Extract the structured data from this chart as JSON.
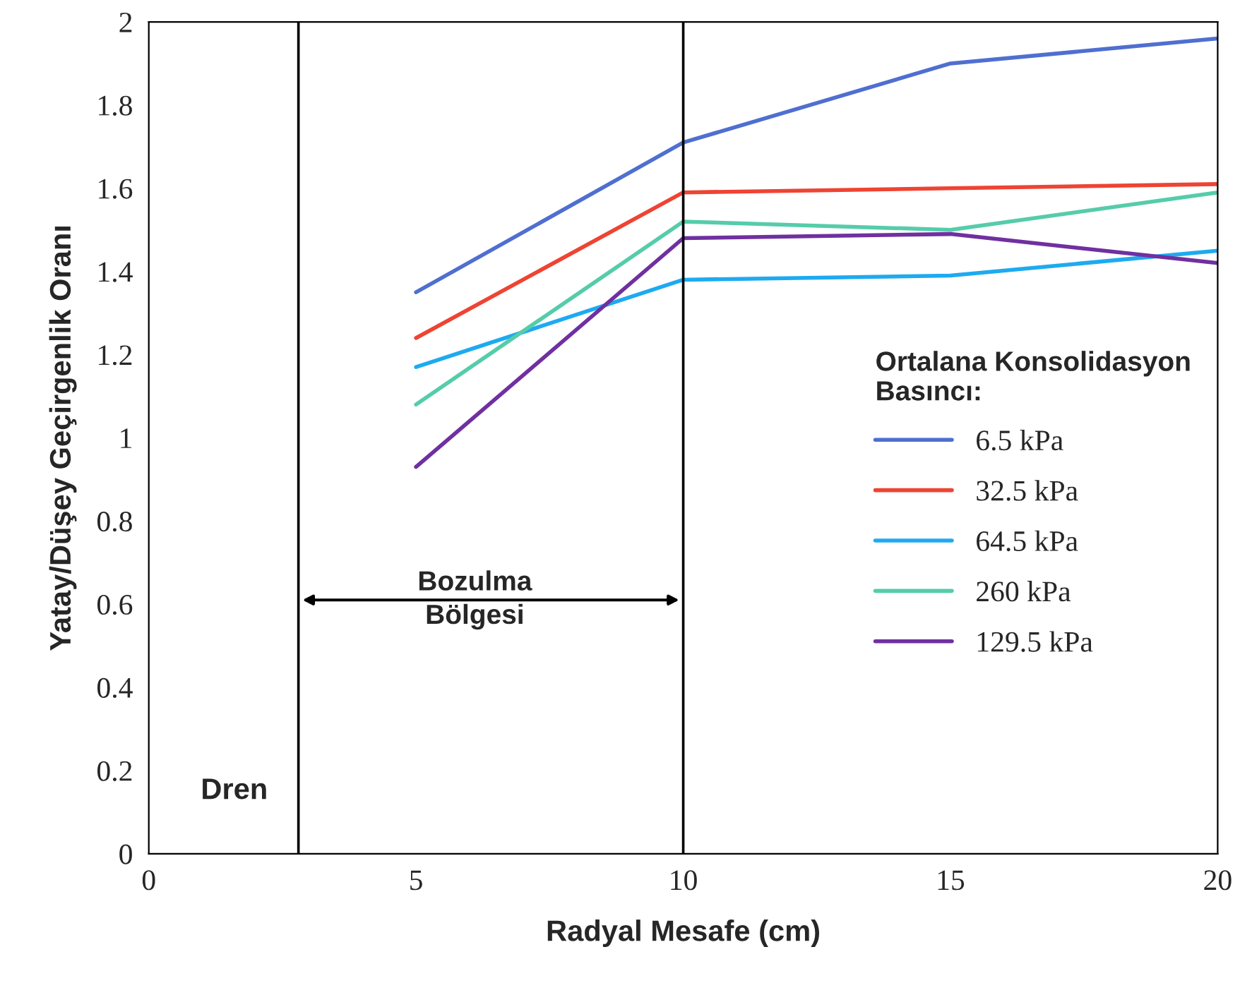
{
  "chart_data": {
    "type": "line",
    "xlabel": "Radyal Mesafe (cm)",
    "ylabel": "Yatay/Düşey Geçirgenlik Oranı",
    "legend_title": "Ortalana Konsolidasyon\nBasıncı:",
    "x": [
      5,
      10,
      15,
      20
    ],
    "series": [
      {
        "name": "6.5 kPa",
        "color": "#4f6fd0",
        "values": [
          1.35,
          1.71,
          1.9,
          1.96
        ]
      },
      {
        "name": "32.5 kPa",
        "color": "#ee4433",
        "values": [
          1.24,
          1.59,
          1.6,
          1.61
        ]
      },
      {
        "name": "64.5 kPa",
        "color": "#1eaaf0",
        "values": [
          1.17,
          1.38,
          1.39,
          1.45
        ]
      },
      {
        "name": "260 kPa",
        "color": "#55ccaa",
        "values": [
          1.08,
          1.52,
          1.5,
          1.59
        ]
      },
      {
        "name": "129.5 kPa",
        "color": "#7030a0",
        "values": [
          0.93,
          1.48,
          1.49,
          1.42
        ]
      }
    ],
    "xlim": [
      0,
      20
    ],
    "xticks": [
      0,
      5,
      10,
      15,
      20
    ],
    "ylim": [
      0,
      2
    ],
    "yticks": [
      0,
      0.2,
      0.4,
      0.6,
      0.8,
      1,
      1.2,
      1.4,
      1.6,
      1.8,
      2
    ],
    "ref_lines": [
      {
        "axis": "x",
        "value": 2.8,
        "color": "#000000"
      },
      {
        "axis": "x",
        "value": 10,
        "color": "#000000"
      }
    ],
    "annotations": [
      "Dren",
      "Bozulma\nBölgesi"
    ],
    "grid": false,
    "legend": "right",
    "marker": "none",
    "line_style": "solid"
  }
}
